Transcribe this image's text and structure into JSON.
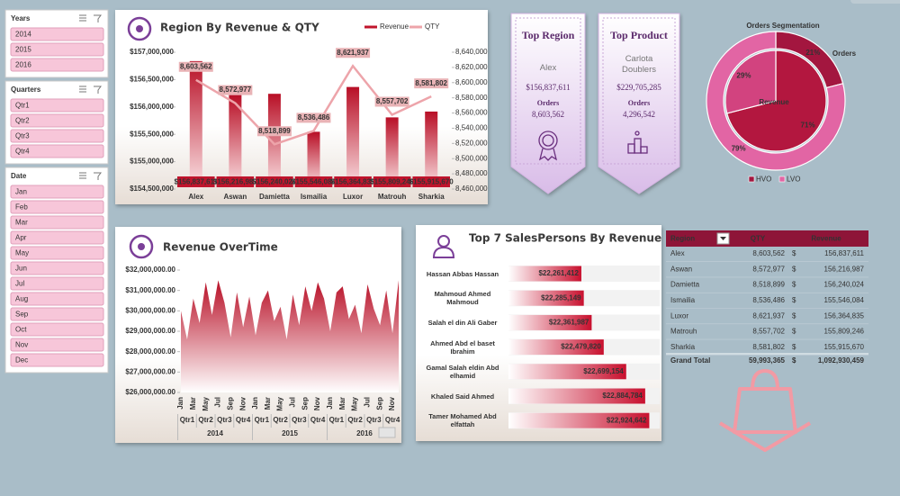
{
  "slicers": [
    {
      "title": "Years",
      "items": [
        "2014",
        "2015",
        "2016"
      ]
    },
    {
      "title": "Quarters",
      "items": [
        "Qtr1",
        "Qtr2",
        "Qtr3",
        "Qtr4"
      ]
    },
    {
      "title": "Date",
      "items": [
        "Jan",
        "Feb",
        "Mar",
        "Apr",
        "May",
        "Jun",
        "Jul",
        "Aug",
        "Sep",
        "Oct",
        "Nov",
        "Dec"
      ]
    }
  ],
  "chart_data": [
    {
      "type": "bar",
      "title": "Region By Revenue & QTY",
      "categories": [
        "Alex",
        "Aswan",
        "Damietta",
        "Ismailia",
        "Luxor",
        "Matrouh",
        "Sharkia"
      ],
      "series": [
        {
          "name": "Revenue",
          "type": "bar",
          "color": "#c0142c",
          "values": [
            156837611,
            156216987,
            156240024,
            155546084,
            156364835,
            155809246,
            155915670
          ],
          "value_labels": [
            "$156,837,611",
            "$156,216,987",
            "$156,240,024",
            "$155,546,084",
            "$156,364,835",
            "$155,809,246",
            "$155,915,670"
          ]
        },
        {
          "name": "QTY",
          "type": "line",
          "axis": "y2",
          "color": "#eda4aa",
          "values": [
            8603562,
            8572977,
            8518899,
            8536486,
            8621937,
            8557702,
            8581802
          ],
          "value_labels": [
            "8,603,562",
            "8,572,977",
            "8,518,899",
            "8,536,486",
            "8,621,937",
            "8,557,702",
            "8,581,802"
          ]
        }
      ],
      "ylim": [
        154500000,
        157000000
      ],
      "yticks": [
        {
          "value": 154500000,
          "label": "$154,500,000"
        },
        {
          "value": 155000000,
          "label": "$155,000,000"
        },
        {
          "value": 155500000,
          "label": "$155,500,000"
        },
        {
          "value": 156000000,
          "label": "$156,000,000"
        },
        {
          "value": 156500000,
          "label": "$156,500,000"
        },
        {
          "value": 157000000,
          "label": "$157,000,000"
        }
      ],
      "y2lim": [
        8460000,
        8640000
      ],
      "y2ticks": [
        {
          "value": 8460000,
          "label": "8,460,000"
        },
        {
          "value": 8480000,
          "label": "8,480,000"
        },
        {
          "value": 8500000,
          "label": "8,500,000"
        },
        {
          "value": 8520000,
          "label": "8,520,000"
        },
        {
          "value": 8540000,
          "label": "8,540,000"
        },
        {
          "value": 8560000,
          "label": "8,560,000"
        },
        {
          "value": 8580000,
          "label": "8,580,000"
        },
        {
          "value": 8600000,
          "label": "8,600,000"
        },
        {
          "value": 8620000,
          "label": "8,620,000"
        },
        {
          "value": 8640000,
          "label": "8,640,000"
        }
      ],
      "legend": "top-right"
    },
    {
      "type": "area",
      "title": "Revenue OverTime",
      "categories": [
        "Jan",
        null,
        "Mar",
        null,
        "May",
        null,
        "Jul",
        null,
        "Sep",
        null,
        "Nov",
        null,
        "Jan",
        null,
        "Mar",
        null,
        "May",
        null,
        "Jul",
        null,
        "Sep",
        null,
        "Nov",
        null,
        "Jan",
        null,
        "Mar",
        null,
        "May",
        null,
        "Jul",
        null,
        "Sep",
        null,
        "Nov",
        null
      ],
      "quarters": [
        "Qtr1",
        "Qtr2",
        "Qtr3",
        "Qtr4",
        "Qtr1",
        "Qtr2",
        "Qtr3",
        "Qtr4",
        "Qtr1",
        "Qtr2",
        "Qtr3",
        "Qtr4"
      ],
      "years": [
        "2014",
        "2015",
        "2016"
      ],
      "values": [
        30000000,
        28600000,
        30600000,
        29400000,
        31400000,
        29800000,
        31500000,
        30400000,
        28700000,
        30900000,
        29200000,
        30700000,
        28800000,
        30400000,
        31000000,
        29500000,
        30200000,
        28600000,
        30800000,
        29300000,
        31200000,
        30000000,
        31400000,
        30600000,
        29000000,
        30900000,
        31200000,
        29600000,
        30300000,
        28900000,
        31300000,
        30100000,
        29300000,
        31000000,
        28900000,
        31500000
      ],
      "color": "#c0142c",
      "ylim": [
        26000000,
        32000000
      ],
      "yticks": [
        {
          "value": 26000000,
          "label": "$26,000,000.00"
        },
        {
          "value": 27000000,
          "label": "$27,000,000.00"
        },
        {
          "value": 28000000,
          "label": "$28,000,000.00"
        },
        {
          "value": 29000000,
          "label": "$29,000,000.00"
        },
        {
          "value": 30000000,
          "label": "$30,000,000.00"
        },
        {
          "value": 31000000,
          "label": "$31,000,000.00"
        },
        {
          "value": 32000000,
          "label": "$32,000,000.00"
        }
      ]
    },
    {
      "type": "hbar",
      "title": "Top 7 SalesPersons By Revenue",
      "categories": [
        "Hassan Abbas Hassan",
        "Mahmoud Ahmed Mahmoud",
        "Salah el din Ali Gaber",
        "Ahmed Abd el baset Ibrahim",
        "Gamal Salah eldin Abd elhamid",
        "Khaled Said Ahmed",
        "Tamer Mohamed Abd elfattah"
      ],
      "values": [
        22261412,
        22285149,
        22361987,
        22479820,
        22699154,
        22884784,
        22924642
      ],
      "value_labels": [
        "$22,261,412",
        "$22,285,149",
        "$22,361,987",
        "$22,479,820",
        "$22,699,154",
        "$22,884,784",
        "$22,924,642"
      ],
      "color": "#c8102e",
      "xlim": [
        21550000,
        23000000
      ]
    },
    {
      "type": "pie",
      "title": "Orders Segmentation",
      "categories": [
        "HVO",
        "LVO"
      ],
      "series": [
        {
          "name": "Revenue",
          "values": [
            71,
            29
          ],
          "value_labels": [
            "71%",
            "29%"
          ],
          "colors": [
            "#b3173f",
            "#d2437f"
          ]
        },
        {
          "name": "Orders",
          "values": [
            21,
            79
          ],
          "value_labels": [
            "21%",
            "79%"
          ],
          "colors": [
            "#a3163f",
            "#e265a4"
          ]
        }
      ],
      "legend": "bottom"
    }
  ],
  "cards": [
    {
      "title": "Top Region",
      "name": "Alex",
      "revenue": "$156,837,611",
      "orders_label": "Orders",
      "orders": "8,603,562"
    },
    {
      "title": "Top Product",
      "name": "Carlota Doublers",
      "revenue": "$229,705,285",
      "orders_label": "Orders",
      "orders": "4,296,542"
    }
  ],
  "table": {
    "columns": [
      "Region",
      "QTY",
      "Revenue"
    ],
    "currency": "$",
    "rows": [
      [
        "Alex",
        "8,603,562",
        "156,837,611"
      ],
      [
        "Aswan",
        "8,572,977",
        "156,216,987"
      ],
      [
        "Damietta",
        "8,518,899",
        "156,240,024"
      ],
      [
        "Ismailia",
        "8,536,486",
        "155,546,084"
      ],
      [
        "Luxor",
        "8,621,937",
        "156,364,835"
      ],
      [
        "Matrouh",
        "8,557,702",
        "155,809,246"
      ],
      [
        "Sharkia",
        "8,581,802",
        "155,915,670"
      ]
    ],
    "total": [
      "Grand Total",
      "59,993,365",
      "1,092,930,459"
    ]
  }
}
